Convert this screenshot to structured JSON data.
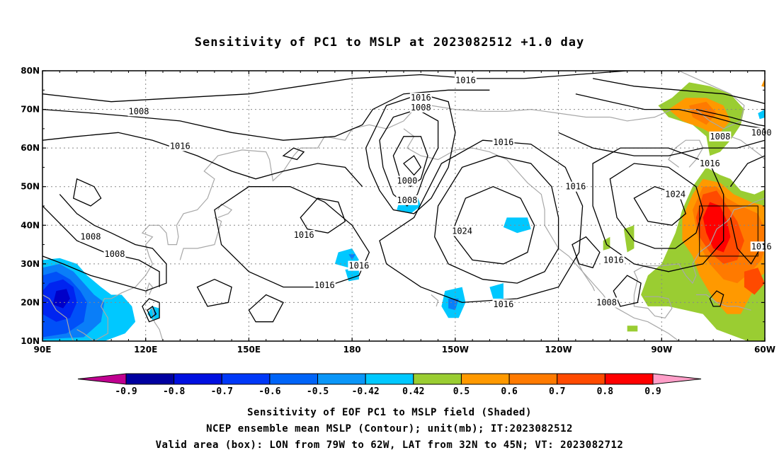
{
  "title": "Sensitivity of PC1 to MSLP at 2023082512 +1.0 day",
  "captions": [
    "Sensitivity of EOF PC1 to MSLP field (Shaded)",
    "NCEP ensemble mean MSLP (Contour); unit(mb); IT:2023082512",
    "Valid area (box): LON from 79W to 62W, LAT from 32N to 45N; VT: 2023082712"
  ],
  "map": {
    "lon_range": [
      90,
      300
    ],
    "lat_range": [
      10,
      80
    ],
    "lat_ticks": [
      {
        "lat": 80,
        "label": "80N"
      },
      {
        "lat": 70,
        "label": "70N"
      },
      {
        "lat": 60,
        "label": "60N"
      },
      {
        "lat": 50,
        "label": "50N"
      },
      {
        "lat": 40,
        "label": "40N"
      },
      {
        "lat": 30,
        "label": "30N"
      },
      {
        "lat": 20,
        "label": "20N"
      },
      {
        "lat": 10,
        "label": "10N"
      }
    ],
    "lon_ticks": [
      {
        "lon": 90,
        "label": "90E"
      },
      {
        "lon": 120,
        "label": "120E"
      },
      {
        "lon": 150,
        "label": "150E"
      },
      {
        "lon": 180,
        "label": "180"
      },
      {
        "lon": 210,
        "label": "150W"
      },
      {
        "lon": 240,
        "label": "120W"
      },
      {
        "lon": 270,
        "label": "90W"
      },
      {
        "lon": 300,
        "label": "60W"
      }
    ],
    "valid_box": {
      "lon_min": 281,
      "lon_max": 298,
      "lat_min": 32,
      "lat_max": 45
    },
    "contour_labels": [
      {
        "lon": 213,
        "lat": 77.5,
        "text": "1016"
      },
      {
        "lon": 200,
        "lat": 73,
        "text": "1016"
      },
      {
        "lon": 200,
        "lat": 70.5,
        "text": "1008"
      },
      {
        "lon": 118,
        "lat": 69.5,
        "text": "1008"
      },
      {
        "lon": 130,
        "lat": 60.5,
        "text": "1016"
      },
      {
        "lon": 224,
        "lat": 61.5,
        "text": "1016"
      },
      {
        "lon": 287,
        "lat": 63,
        "text": "1008"
      },
      {
        "lon": 299,
        "lat": 64,
        "text": "1000"
      },
      {
        "lon": 284,
        "lat": 56,
        "text": "1016"
      },
      {
        "lon": 196,
        "lat": 51.5,
        "text": "1000"
      },
      {
        "lon": 196,
        "lat": 46.5,
        "text": "1008"
      },
      {
        "lon": 245,
        "lat": 50,
        "text": "1016"
      },
      {
        "lon": 274,
        "lat": 48,
        "text": "1024"
      },
      {
        "lon": 166,
        "lat": 37.5,
        "text": "1016"
      },
      {
        "lon": 212,
        "lat": 38.5,
        "text": "1024"
      },
      {
        "lon": 104,
        "lat": 37,
        "text": "1008"
      },
      {
        "lon": 111,
        "lat": 32.5,
        "text": "1008"
      },
      {
        "lon": 182,
        "lat": 29.5,
        "text": "1016"
      },
      {
        "lon": 172,
        "lat": 24.5,
        "text": "1016"
      },
      {
        "lon": 224,
        "lat": 19.5,
        "text": "1016"
      },
      {
        "lon": 256,
        "lat": 31,
        "text": "1016"
      },
      {
        "lon": 254,
        "lat": 20,
        "text": "1008"
      },
      {
        "lon": 299,
        "lat": 34.5,
        "text": "1016"
      }
    ],
    "colors": {
      "neg_09": "#8e008e",
      "neg_08": "#0000c8",
      "neg_07": "#0024f0",
      "neg_06": "#0050f8",
      "neg_05": "#0a7ef8",
      "neg_042": "#00c8ff",
      "pos_042": "#9acd32",
      "pos_05": "#ff9900",
      "pos_06": "#ff7a00",
      "pos_07": "#ff4a00",
      "pos_08": "#ff0000",
      "pos_09": "#ffa0d0",
      "coast": "#a8a8a8",
      "contour": "#000000",
      "grid": "#888888"
    }
  },
  "colorbar": {
    "ticks": [
      "-0.9",
      "-0.8",
      "-0.7",
      "-0.6",
      "-0.5",
      "-0.42",
      "0.42",
      "0.5",
      "0.6",
      "0.7",
      "0.8",
      "0.9"
    ],
    "colors": [
      "#0000a0",
      "#0010e0",
      "#0038f8",
      "#0064f8",
      "#0a96f8",
      "#00c8ff",
      "#ffffff",
      "#9acd32",
      "#ff9900",
      "#ff7a00",
      "#ff4a00",
      "#ff0000"
    ],
    "low_end_color": "#c00090",
    "high_end_color": "#ff9ec8"
  }
}
